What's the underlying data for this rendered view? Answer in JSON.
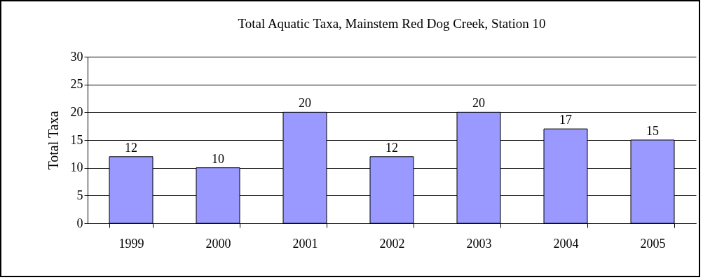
{
  "chart_data": {
    "type": "bar",
    "title": "Total Aquatic Taxa, Mainstem Red Dog Creek, Station 10",
    "ylabel": "Total Taxa",
    "categories": [
      "1999",
      "2000",
      "2001",
      "2002",
      "2003",
      "2004",
      "2005"
    ],
    "values": [
      12,
      10,
      20,
      12,
      20,
      17,
      15
    ],
    "color": "#9999ff",
    "ylim": [
      0,
      30
    ],
    "yticks": [
      0,
      5,
      10,
      15,
      20,
      25,
      30
    ],
    "grid": true,
    "data_labels": true
  }
}
